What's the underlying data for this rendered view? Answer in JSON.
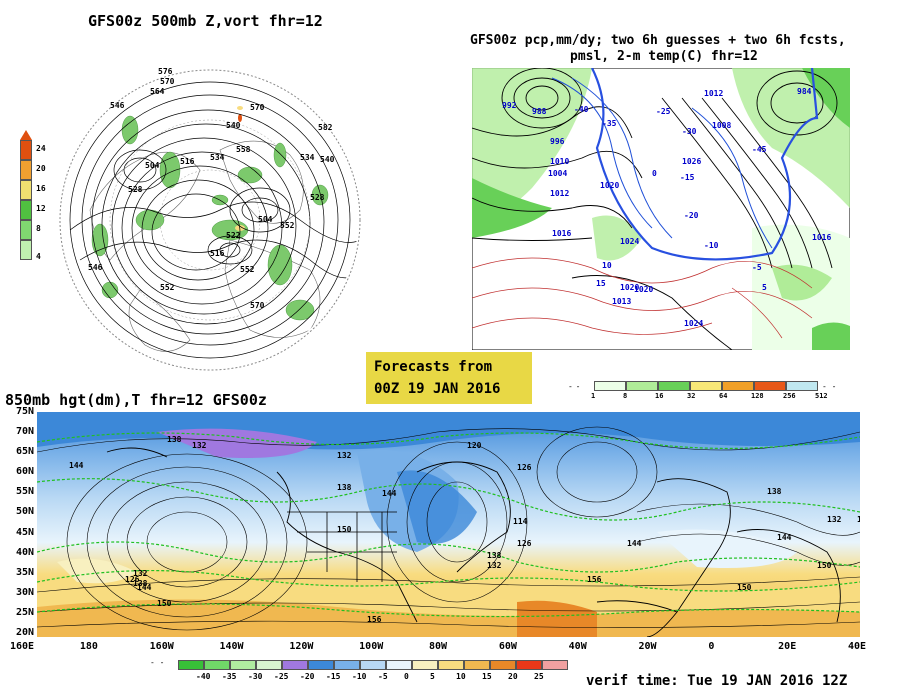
{
  "panels": {
    "top_left_title": "GFS00z  500mb Z,vort   fhr=12",
    "top_right_title_line1": "GFS00z pcp,mm/dy; two 6h guesses + two 6h fcsts,",
    "top_right_title_line2": "pmsl, 2-m temp(C)  fhr=12",
    "bottom_title": "850mb hgt(dm),T  fhr=12 GFS00z"
  },
  "forecast_box": {
    "line1": "Forecasts from",
    "line2": "00Z 19 JAN 2016"
  },
  "verif_time": "verif time: Tue 19 JAN 2016 12Z",
  "vort_colorbar": {
    "labels": [
      "24",
      "20",
      "16",
      "12",
      "8",
      "4"
    ],
    "colors": [
      "#e05010",
      "#f0a030",
      "#f0e070",
      "#50c040",
      "#80d870",
      "#c0f0b0"
    ]
  },
  "pcp_colorbar": {
    "labels": [
      "1",
      "8",
      "16",
      "32",
      "64",
      "128",
      "256",
      "512"
    ],
    "colors": [
      "#ecffe8",
      "#b0ec98",
      "#68d058",
      "#f8e878",
      "#f0a028",
      "#e85818",
      "#c0e8f0"
    ]
  },
  "temp_colorbar": {
    "labels": [
      "-40",
      "-35",
      "-30",
      "-25",
      "-20",
      "-15",
      "-10",
      "-5",
      "0",
      "5",
      "10",
      "15",
      "20",
      "25"
    ],
    "colors": [
      "#38c038",
      "#70d868",
      "#b0eca0",
      "#d8f4d0",
      "#a078e0",
      "#3c88d8",
      "#78b0e8",
      "#b8d8f4",
      "#e8f4fc",
      "#f8f0c0",
      "#f8dc80",
      "#f0b850",
      "#e88828",
      "#e83818",
      "#f0a0a0"
    ]
  },
  "map850": {
    "lat_labels": [
      "75N",
      "70N",
      "65N",
      "60N",
      "55N",
      "50N",
      "45N",
      "40N",
      "35N",
      "30N",
      "25N",
      "20N"
    ],
    "lon_labels": [
      "160E",
      "180",
      "160W",
      "140W",
      "120W",
      "100W",
      "80W",
      "60W",
      "40W",
      "20W",
      "0",
      "20E",
      "40E"
    ],
    "contour_labels": [
      {
        "t": "144"
      },
      {
        "t": "138"
      },
      {
        "t": "132"
      },
      {
        "t": "132"
      },
      {
        "t": "138"
      },
      {
        "t": "144"
      },
      {
        "t": "150"
      },
      {
        "t": "138"
      },
      {
        "t": "132"
      },
      {
        "t": "126"
      },
      {
        "t": "126"
      },
      {
        "t": "114"
      },
      {
        "t": "144"
      },
      {
        "t": "156"
      },
      {
        "t": "150"
      },
      {
        "t": "144"
      },
      {
        "t": "138"
      },
      {
        "t": "150"
      },
      {
        "t": "126"
      },
      {
        "t": "132"
      },
      {
        "t": "138"
      },
      {
        "t": "132"
      },
      {
        "t": "144"
      },
      {
        "t": "150"
      },
      {
        "t": "156"
      },
      {
        "t": "150"
      },
      {
        "t": "120"
      }
    ]
  },
  "polar_labels": [
    {
      "t": "576"
    },
    {
      "t": "570"
    },
    {
      "t": "564"
    },
    {
      "t": "570"
    },
    {
      "t": "558"
    },
    {
      "t": "546"
    },
    {
      "t": "540"
    },
    {
      "t": "534"
    },
    {
      "t": "516"
    },
    {
      "t": "504"
    },
    {
      "t": "528"
    },
    {
      "t": "522"
    },
    {
      "t": "546"
    },
    {
      "t": "552"
    },
    {
      "t": "504"
    },
    {
      "t": "552"
    },
    {
      "t": "570"
    },
    {
      "t": "582"
    },
    {
      "t": "534"
    },
    {
      "t": "540"
    },
    {
      "t": "528"
    },
    {
      "t": "516"
    },
    {
      "t": "552"
    }
  ],
  "pmsl_labels": [
    {
      "t": "992"
    },
    {
      "t": "988"
    },
    {
      "t": "996"
    },
    {
      "t": "1004"
    },
    {
      "t": "1010"
    },
    {
      "t": "1012"
    },
    {
      "t": "1016"
    },
    {
      "t": "1020"
    },
    {
      "t": "1024"
    },
    {
      "t": "1020"
    },
    {
      "t": "1013"
    },
    {
      "t": "1020"
    },
    {
      "t": "1024"
    },
    {
      "t": "1012"
    },
    {
      "t": "1026"
    },
    {
      "t": "1016"
    },
    {
      "t": "984"
    },
    {
      "t": "1008"
    },
    {
      "t": "-25"
    },
    {
      "t": "-30"
    },
    {
      "t": "-15"
    },
    {
      "t": "-20"
    },
    {
      "t": "-10"
    },
    {
      "t": "-5"
    },
    {
      "t": "10"
    },
    {
      "t": "15"
    },
    {
      "t": "5"
    },
    {
      "t": "0"
    },
    {
      "t": "-40"
    },
    {
      "t": "-35"
    },
    {
      "t": "-45"
    }
  ]
}
